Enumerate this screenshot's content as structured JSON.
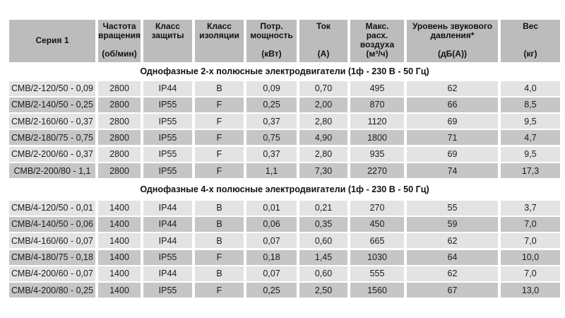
{
  "colors": {
    "header_bg": "#bcbcbc",
    "row_light_bg": "#e3e3e3",
    "row_dark_bg": "#c6c6c6",
    "text": "#1b1b1b"
  },
  "table": {
    "columns": [
      {
        "label": "Серия 1",
        "unit": ""
      },
      {
        "label": "Частота\nвращения",
        "unit": "(об/мин)"
      },
      {
        "label": "Класс\nзащиты",
        "unit": ""
      },
      {
        "label": "Класс\nизоляции",
        "unit": ""
      },
      {
        "label": "Потр.\nмощность",
        "unit": "(кВт)"
      },
      {
        "label": "Ток",
        "unit": "(А)"
      },
      {
        "label": "Макс.\nрасх.\nвоздуха",
        "unit": "(м³/ч)"
      },
      {
        "label": "Уровень звукового\nдавления*",
        "unit": "(дБ(А))"
      },
      {
        "label": "Вес",
        "unit": "(кг)"
      }
    ],
    "sections": [
      {
        "title": "Однофазные 2-х полюсные электродвигатели (1ф - 230 В - 50 Гц)",
        "rows": [
          [
            "СМВ/2-120/50 - 0,09",
            "2800",
            "IP44",
            "В",
            "0,09",
            "0,70",
            "495",
            "62",
            "4,0"
          ],
          [
            "СМВ/2-140/50 - 0,25",
            "2800",
            "IP55",
            "F",
            "0,25",
            "2,00",
            "870",
            "66",
            "8,5"
          ],
          [
            "СМВ/2-160/60 - 0,37",
            "2800",
            "IP55",
            "F",
            "0,37",
            "2,80",
            "1120",
            "69",
            "9,5"
          ],
          [
            "СМВ/2-180/75 - 0,75",
            "2800",
            "IP55",
            "F",
            "0,75",
            "4,90",
            "1800",
            "71",
            "4,7"
          ],
          [
            "СМВ/2-200/60 - 0,37",
            "2800",
            "IP55",
            "F",
            "0,37",
            "2,80",
            "935",
            "69",
            "9,5"
          ],
          [
            "СМВ/2-200/80 - 1,1",
            "2800",
            "IP55",
            "F",
            "1,1",
            "7,30",
            "2270",
            "74",
            "17,3"
          ]
        ]
      },
      {
        "title": "Однофазные 4-х полюсные электродвигатели (1ф - 230 В - 50 Гц)",
        "rows": [
          [
            "СМВ/4-120/50 - 0,01",
            "1400",
            "IP44",
            "В",
            "0,01",
            "0,21",
            "270",
            "55",
            "3,7"
          ],
          [
            "СМВ/4-140/50 - 0,06",
            "1400",
            "IP44",
            "В",
            "0,06",
            "0,35",
            "450",
            "59",
            "7,0"
          ],
          [
            "СМВ/4-160/60 - 0,07",
            "1400",
            "IP44",
            "В",
            "0,07",
            "0,60",
            "665",
            "62",
            "7,0"
          ],
          [
            "СМВ/4-180/75 - 0,18",
            "1400",
            "IP55",
            "F",
            "0,18",
            "1,45",
            "1030",
            "64",
            "10,0"
          ],
          [
            "СМВ/4-200/60 - 0,07",
            "1400",
            "IP44",
            "В",
            "0,07",
            "0,60",
            "555",
            "62",
            "7,0"
          ],
          [
            "СМВ/4-200/80 - 0,25",
            "1400",
            "IP55",
            "F",
            "0,25",
            "2,50",
            "1560",
            "67",
            "13,0"
          ]
        ]
      }
    ]
  },
  "chart_data": {
    "type": "table",
    "title": "",
    "columns": [
      "Серия 1",
      "Частота вращения (об/мин)",
      "Класс защиты",
      "Класс изоляции",
      "Потр. мощность (кВт)",
      "Ток (А)",
      "Макс. расх. воздуха (м³/ч)",
      "Уровень звукового давления* (дБ(А))",
      "Вес (кг)"
    ],
    "groups": [
      {
        "group": "Однофазные 2-х полюсные электродвигатели (1ф - 230 В - 50 Гц)",
        "rows": [
          [
            "СМВ/2-120/50 - 0,09",
            "2800",
            "IP44",
            "В",
            "0,09",
            "0,70",
            "495",
            "62",
            "4,0"
          ],
          [
            "СМВ/2-140/50 - 0,25",
            "2800",
            "IP55",
            "F",
            "0,25",
            "2,00",
            "870",
            "66",
            "8,5"
          ],
          [
            "СМВ/2-160/60 - 0,37",
            "2800",
            "IP55",
            "F",
            "0,37",
            "2,80",
            "1120",
            "69",
            "9,5"
          ],
          [
            "СМВ/2-180/75 - 0,75",
            "2800",
            "IP55",
            "F",
            "0,75",
            "4,90",
            "1800",
            "71",
            "4,7"
          ],
          [
            "СМВ/2-200/60 - 0,37",
            "2800",
            "IP55",
            "F",
            "0,37",
            "2,80",
            "935",
            "69",
            "9,5"
          ],
          [
            "СМВ/2-200/80 - 1,1",
            "2800",
            "IP55",
            "F",
            "1,1",
            "7,30",
            "2270",
            "74",
            "17,3"
          ]
        ]
      },
      {
        "group": "Однофазные 4-х полюсные электродвигатели (1ф - 230 В - 50 Гц)",
        "rows": [
          [
            "СМВ/4-120/50 - 0,01",
            "1400",
            "IP44",
            "В",
            "0,01",
            "0,21",
            "270",
            "55",
            "3,7"
          ],
          [
            "СМВ/4-140/50 - 0,06",
            "1400",
            "IP44",
            "В",
            "0,06",
            "0,35",
            "450",
            "59",
            "7,0"
          ],
          [
            "СМВ/4-160/60 - 0,07",
            "1400",
            "IP44",
            "В",
            "0,07",
            "0,60",
            "665",
            "62",
            "7,0"
          ],
          [
            "СМВ/4-180/75 - 0,18",
            "1400",
            "IP55",
            "F",
            "0,18",
            "1,45",
            "1030",
            "64",
            "10,0"
          ],
          [
            "СМВ/4-200/60 - 0,07",
            "1400",
            "IP44",
            "В",
            "0,07",
            "0,60",
            "555",
            "62",
            "7,0"
          ],
          [
            "СМВ/4-200/80 - 0,25",
            "1400",
            "IP55",
            "F",
            "0,25",
            "2,50",
            "1560",
            "67",
            "13,0"
          ]
        ]
      }
    ]
  }
}
